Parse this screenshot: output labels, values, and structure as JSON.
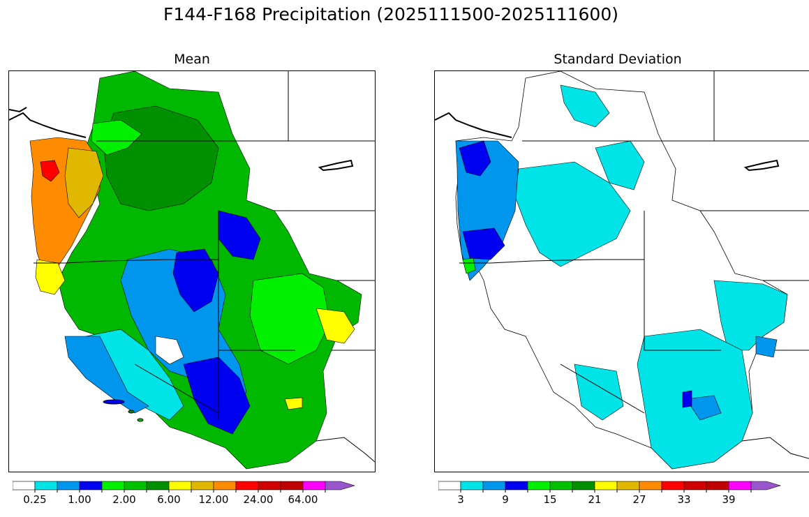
{
  "title": "F144-F168 Precipitation (2025111500-2025111600)",
  "panels": [
    {
      "id": "mean",
      "title": "Mean"
    },
    {
      "id": "sd",
      "title": "Standard Deviation"
    }
  ],
  "colorbar_colors": [
    "#ffffff",
    "#00e4e8",
    "#0096ee",
    "#0000f0",
    "#00f000",
    "#00c000",
    "#009000",
    "#ffff00",
    "#e0b800",
    "#ff8c00",
    "#ff0000",
    "#d00000",
    "#c00000",
    "#ff00ff",
    "#9955cc"
  ],
  "colorbars": [
    {
      "id": "mean",
      "labels": [
        "0.25",
        "1.00",
        "2.00",
        "6.00",
        "12.00",
        "24.00",
        "64.00"
      ]
    },
    {
      "id": "sd",
      "labels": [
        "3",
        "9",
        "15",
        "21",
        "27",
        "33",
        "39"
      ]
    }
  ],
  "legend_colors": {
    "none": "#ffffff",
    "cyan": "#00e4e8",
    "light_blue": "#0096ee",
    "blue": "#0000f0",
    "bright_green": "#00f000",
    "green": "#00c000",
    "dark_green": "#009000",
    "yellow": "#ffff00",
    "gold": "#e0b800",
    "orange": "#ff8c00",
    "red": "#ff0000"
  }
}
